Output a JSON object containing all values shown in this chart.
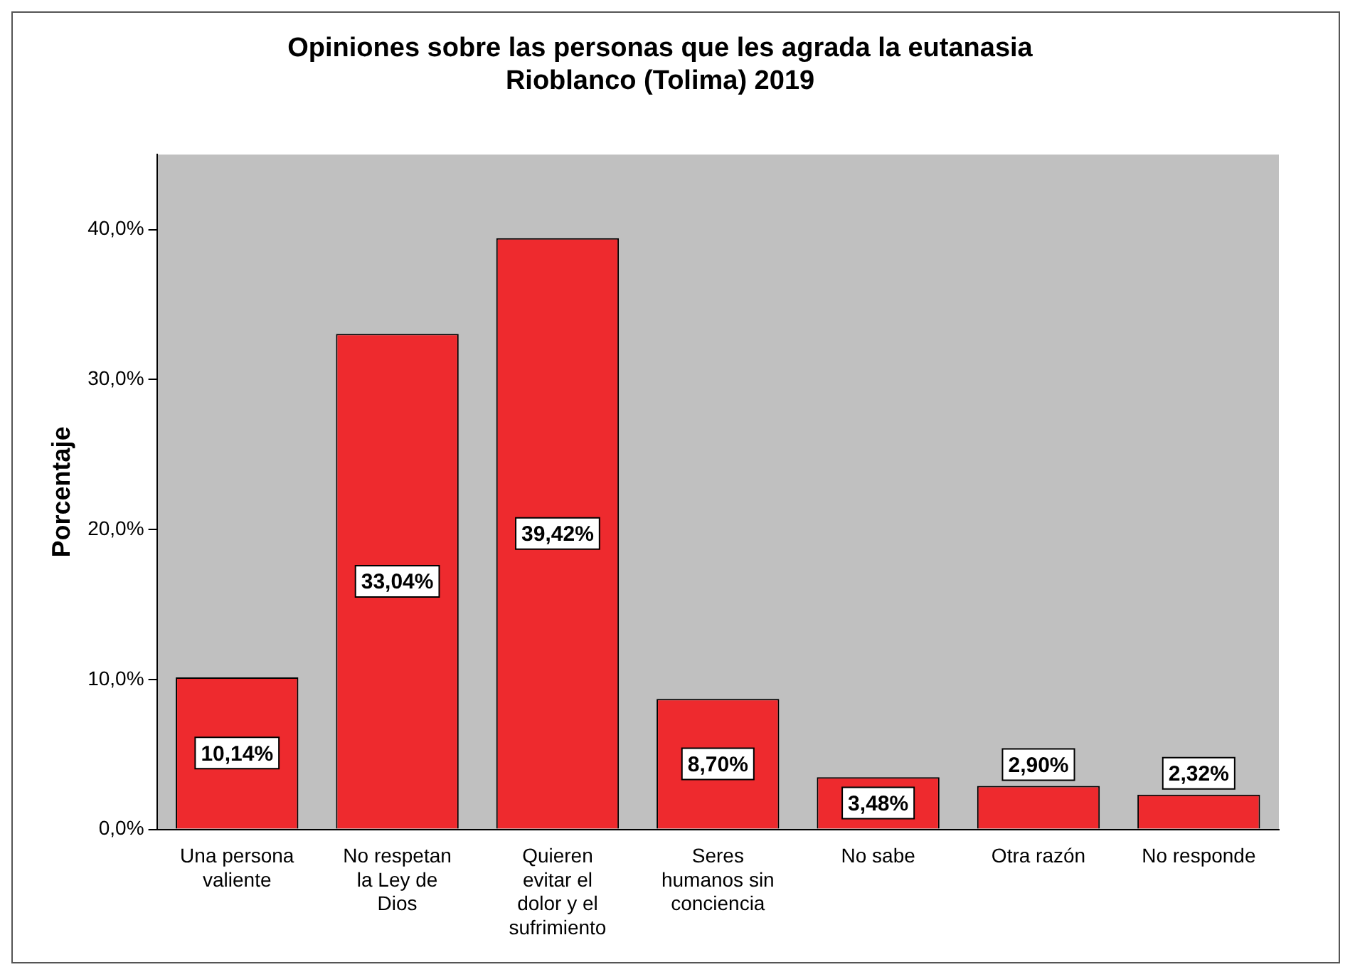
{
  "chart_data": {
    "type": "bar",
    "title": "Opiniones sobre las personas que les agrada la eutanasia\nRioblanco (Tolima) 2019",
    "ylabel": "Porcentaje",
    "categories": [
      "Una persona valiente",
      "No respetan la Ley de Dios",
      "Quieren evitar el dolor y el sufrimiento",
      "Seres humanos sin conciencia",
      "No sabe",
      "Otra razón",
      "No responde"
    ],
    "values": [
      10.14,
      33.04,
      39.42,
      8.7,
      3.48,
      2.9,
      2.32
    ],
    "value_labels": [
      "10,14%",
      "33,04%",
      "39,42%",
      "8,70%",
      "3,48%",
      "2,90%",
      "2,32%"
    ],
    "color": "#ee2a2e",
    "ylim": [
      0,
      45
    ],
    "yticks": [
      {
        "value": 0,
        "label": "0,0%"
      },
      {
        "value": 10,
        "label": "10,0%"
      },
      {
        "value": 20,
        "label": "20,0%"
      },
      {
        "value": 30,
        "label": "30,0%"
      },
      {
        "value": 40,
        "label": "40,0%"
      }
    ],
    "grid": false,
    "legend": false
  }
}
